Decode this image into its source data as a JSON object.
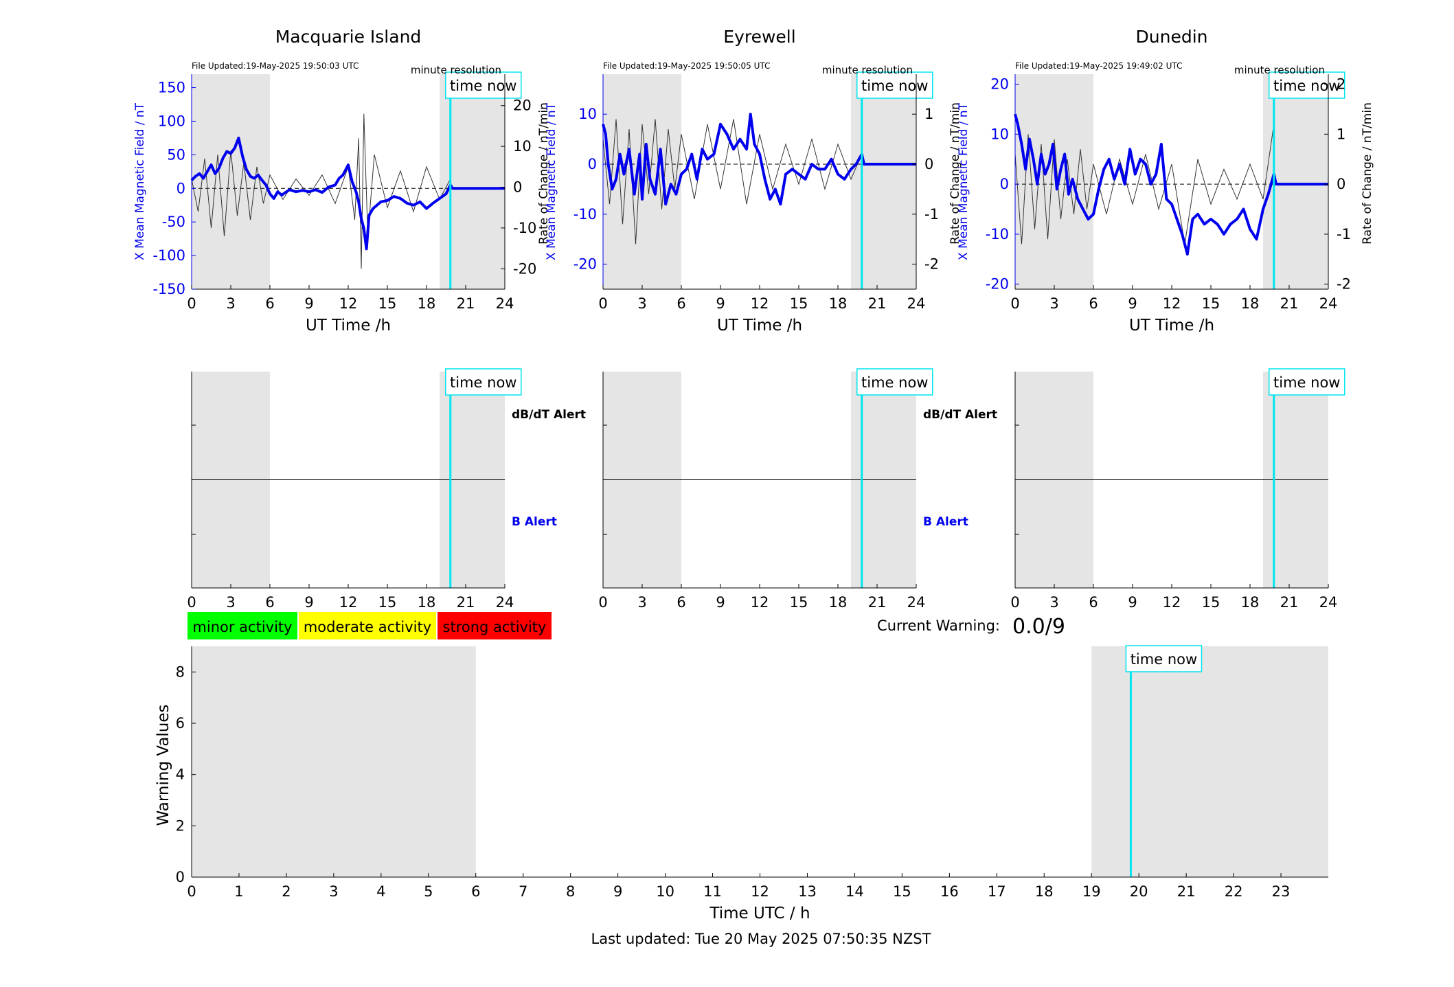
{
  "colors": {
    "blue": "#0000ee",
    "cyan": "#00e5ee",
    "shade": "#e5e5e5",
    "rate": "#333333",
    "minor": "#00ff00",
    "moderate": "#ffff00",
    "strong": "#ff0000"
  },
  "common": {
    "time_now_label": "time now",
    "minute_resolution": "minute resolution",
    "ut_xlabel": "UT Time /h",
    "left_ylabel": "X Mean Magnetic Field / nT",
    "right_ylabel": "Rate of Change / nT/min",
    "dbdt_alert": "dB/dT Alert",
    "b_alert": "B Alert",
    "x_ticks": [
      0,
      3,
      6,
      9,
      12,
      15,
      18,
      21,
      24
    ]
  },
  "legend": {
    "minor": "minor activity",
    "moderate": "moderate activity",
    "strong": "strong activity"
  },
  "current_warning": {
    "label": "Current Warning:",
    "value": "0.0/9"
  },
  "footer": "Last updated: Tue 20 May 2025 07:50:35 NZST",
  "chart_data": [
    {
      "type": "line",
      "title": "Macquarie Island",
      "file_updated": "File Updated:19-May-2025 19:50:03 UTC",
      "xlabel": "UT Time /h",
      "ylabel": "X Mean Magnetic Field / nT",
      "ylabel_right": "Rate of Change / nT/min",
      "xlim": [
        0,
        24
      ],
      "ylim": [
        -150,
        170
      ],
      "y_ticks": [
        -150,
        -100,
        -50,
        0,
        50,
        100,
        150
      ],
      "ylim_right": [
        -25,
        27.7
      ],
      "y_ticks_right": [
        -20,
        -10,
        0,
        10,
        20
      ],
      "shaded_ranges": [
        [
          0,
          6
        ],
        [
          19,
          24
        ]
      ],
      "time_now": 19.83,
      "series": [
        {
          "name": "X Mean Magnetic Field",
          "x": [
            0,
            0.3,
            0.6,
            0.9,
            1.2,
            1.5,
            1.8,
            2.1,
            2.4,
            2.7,
            3.0,
            3.3,
            3.6,
            3.9,
            4.2,
            4.5,
            4.8,
            5.1,
            5.4,
            5.7,
            6.0,
            6.3,
            6.6,
            6.9,
            7.5,
            8.0,
            8.5,
            9.0,
            9.5,
            10.0,
            10.5,
            11.0,
            11.3,
            11.6,
            12.0,
            12.3,
            12.6,
            12.8,
            13.0,
            13.2,
            13.4,
            13.6,
            13.9,
            14.2,
            14.5,
            15.0,
            15.5,
            16.0,
            16.5,
            17.0,
            17.5,
            18.0,
            18.5,
            19.0,
            19.5,
            19.83,
            20,
            22,
            24
          ],
          "y": [
            12,
            18,
            22,
            15,
            25,
            35,
            22,
            30,
            45,
            55,
            52,
            60,
            75,
            48,
            28,
            18,
            15,
            20,
            12,
            5,
            -8,
            -15,
            -5,
            -10,
            -2,
            -5,
            -3,
            -5,
            -2,
            -6,
            2,
            5,
            15,
            20,
            35,
            10,
            -5,
            -20,
            -45,
            -60,
            -90,
            -40,
            -30,
            -25,
            -20,
            -18,
            -12,
            -15,
            -22,
            -25,
            -20,
            -30,
            -22,
            -15,
            -8,
            5,
            0,
            0,
            0
          ]
        },
        {
          "name": "Rate of Change",
          "x": [
            0,
            0.5,
            1.0,
            1.5,
            2.0,
            2.5,
            3.0,
            3.5,
            4.0,
            4.5,
            5.0,
            5.5,
            6.0,
            7.0,
            8.0,
            9.0,
            10.0,
            11.0,
            12.0,
            12.5,
            12.8,
            13.0,
            13.2,
            13.5,
            14.0,
            15.0,
            16.0,
            17.0,
            18.0,
            19.0,
            19.83
          ],
          "y": [
            2,
            -6,
            7,
            -10,
            8,
            -12,
            9,
            -7,
            6,
            -8,
            5,
            -4,
            3,
            -3,
            2,
            -2,
            3,
            -4,
            5,
            -8,
            12,
            -20,
            18,
            -12,
            8,
            -5,
            4,
            -6,
            5,
            -3,
            2
          ]
        }
      ]
    },
    {
      "type": "line",
      "title": "Eyrewell",
      "file_updated": "File Updated:19-May-2025 19:50:05 UTC",
      "xlabel": "UT Time /h",
      "ylabel": "X Mean Magnetic Field / nT",
      "ylabel_right": "Rate of Change / nT/min",
      "xlim": [
        0,
        24
      ],
      "ylim": [
        -25,
        18
      ],
      "y_ticks": [
        -20,
        -10,
        0,
        10
      ],
      "ylim_right": [
        -2.5,
        1.8
      ],
      "y_ticks_right": [
        -2,
        -1,
        0,
        1
      ],
      "shaded_ranges": [
        [
          0,
          6
        ],
        [
          19,
          24
        ]
      ],
      "time_now": 19.83,
      "series": [
        {
          "name": "X Mean Magnetic Field",
          "x": [
            0,
            0.2,
            0.4,
            0.7,
            1.0,
            1.3,
            1.6,
            2.0,
            2.4,
            2.8,
            3.0,
            3.3,
            3.6,
            4.0,
            4.4,
            4.8,
            5.2,
            5.6,
            6.0,
            6.4,
            6.8,
            7.2,
            7.6,
            8.0,
            8.5,
            9.0,
            9.5,
            10.0,
            10.5,
            11.0,
            11.3,
            11.6,
            12.0,
            12.4,
            12.8,
            13.2,
            13.6,
            14.0,
            14.5,
            15.0,
            15.5,
            16.0,
            16.5,
            17.0,
            17.5,
            18.0,
            18.5,
            19.0,
            19.4,
            19.83,
            20,
            22,
            24
          ],
          "y": [
            8,
            6,
            0,
            -5,
            -3,
            2,
            -2,
            3,
            -6,
            2,
            -7,
            4,
            -3,
            -6,
            3,
            -8,
            -4,
            -6,
            -2,
            -1,
            2,
            -3,
            3,
            1,
            2,
            8,
            6,
            3,
            5,
            3,
            10,
            4,
            2,
            -3,
            -7,
            -5,
            -8,
            -2,
            -1,
            -2,
            -3,
            0,
            -1,
            -1,
            1,
            -2,
            -3,
            -1,
            0,
            2,
            0,
            0,
            0
          ]
        },
        {
          "name": "Rate of Change",
          "x": [
            0,
            0.5,
            1.0,
            1.5,
            2.0,
            2.5,
            3.0,
            3.5,
            4.0,
            4.5,
            5.0,
            5.5,
            6.0,
            7.0,
            8.0,
            9.0,
            10.0,
            11.0,
            12.0,
            13.0,
            14.0,
            15.0,
            16.0,
            17.0,
            18.0,
            19.0,
            19.83
          ],
          "y": [
            0.5,
            -0.8,
            0.9,
            -1.2,
            0.7,
            -1.6,
            0.8,
            -0.6,
            0.9,
            -0.9,
            0.7,
            -0.5,
            0.6,
            -0.7,
            0.8,
            -0.5,
            0.9,
            -0.8,
            0.6,
            -0.5,
            0.4,
            -0.4,
            0.5,
            -0.5,
            0.4,
            -0.3,
            0.2
          ]
        }
      ]
    },
    {
      "type": "line",
      "title": "Dunedin",
      "file_updated": "File Updated:19-May-2025 19:49:02 UTC",
      "xlabel": "UT Time /h",
      "ylabel": "X Mean Magnetic Field / nT",
      "ylabel_right": "Rate of Change / nT/min",
      "xlim": [
        0,
        24
      ],
      "ylim": [
        -21,
        22
      ],
      "y_ticks": [
        -20,
        -10,
        0,
        10,
        20
      ],
      "ylim_right": [
        -2.1,
        2.2
      ],
      "y_ticks_right": [
        -2,
        -1,
        0,
        1,
        2
      ],
      "shaded_ranges": [
        [
          0,
          6
        ],
        [
          19,
          24
        ]
      ],
      "time_now": 19.83,
      "series": [
        {
          "name": "X Mean Magnetic Field",
          "x": [
            0,
            0.2,
            0.5,
            0.8,
            1.1,
            1.4,
            1.7,
            2.0,
            2.3,
            2.6,
            2.9,
            3.2,
            3.5,
            3.8,
            4.1,
            4.4,
            4.8,
            5.2,
            5.6,
            6.0,
            6.4,
            6.8,
            7.2,
            7.6,
            8.0,
            8.4,
            8.8,
            9.2,
            9.6,
            10.0,
            10.4,
            10.8,
            11.2,
            11.6,
            12.0,
            12.4,
            12.8,
            13.2,
            13.6,
            14.0,
            14.5,
            15.0,
            15.5,
            16.0,
            16.5,
            17.0,
            17.5,
            18.0,
            18.5,
            19.0,
            19.4,
            19.83,
            20,
            22,
            24
          ],
          "y": [
            14,
            12,
            8,
            3,
            9,
            5,
            0,
            6,
            2,
            4,
            8,
            -1,
            3,
            6,
            -2,
            1,
            -3,
            -5,
            -7,
            -6,
            -1,
            3,
            5,
            1,
            4,
            0,
            7,
            2,
            5,
            4,
            0,
            2,
            8,
            -3,
            -4,
            -7,
            -10,
            -14,
            -7,
            -6,
            -8,
            -7,
            -8,
            -10,
            -8,
            -7,
            -5,
            -9,
            -11,
            -5,
            -2,
            2,
            0,
            0,
            0
          ]
        },
        {
          "name": "Rate of Change",
          "x": [
            0,
            0.5,
            1.0,
            1.5,
            2.0,
            2.5,
            3.0,
            3.5,
            4.0,
            4.5,
            5.0,
            5.5,
            6.0,
            7.0,
            8.0,
            9.0,
            10.0,
            11.0,
            12.0,
            13.0,
            14.0,
            15.0,
            16.0,
            17.0,
            18.0,
            19.0,
            19.83
          ],
          "y": [
            0.6,
            -1.2,
            1.0,
            -0.9,
            0.8,
            -1.1,
            0.9,
            -0.7,
            0.5,
            -0.6,
            0.7,
            -0.5,
            0.4,
            -0.6,
            0.5,
            -0.4,
            0.6,
            -0.5,
            0.4,
            -1.2,
            0.5,
            -0.4,
            0.3,
            -0.3,
            0.4,
            -0.3,
            1.2
          ]
        }
      ]
    },
    {
      "type": "line",
      "alert_panel": true,
      "xlim": [
        0,
        24
      ],
      "x_ticks": [
        0,
        3,
        6,
        9,
        12,
        15,
        18,
        21,
        24
      ],
      "shaded_ranges": [
        [
          0,
          6
        ],
        [
          19,
          24
        ]
      ],
      "time_now": 19.83
    },
    {
      "type": "line",
      "alert_panel": true,
      "xlim": [
        0,
        24
      ],
      "x_ticks": [
        0,
        3,
        6,
        9,
        12,
        15,
        18,
        21,
        24
      ],
      "shaded_ranges": [
        [
          0,
          6
        ],
        [
          19,
          24
        ]
      ],
      "time_now": 19.83
    },
    {
      "type": "line",
      "alert_panel": true,
      "xlim": [
        0,
        24
      ],
      "x_ticks": [
        0,
        3,
        6,
        9,
        12,
        15,
        18,
        21,
        24
      ],
      "shaded_ranges": [
        [
          0,
          6
        ],
        [
          19,
          24
        ]
      ],
      "time_now": 19.83
    },
    {
      "type": "line",
      "title": "",
      "xlabel": "Time UTC / h",
      "ylabel": "Warning Values",
      "xlim": [
        0,
        24
      ],
      "ylim": [
        0,
        9
      ],
      "x_ticks": [
        0,
        1,
        2,
        3,
        4,
        5,
        6,
        7,
        8,
        9,
        10,
        11,
        12,
        13,
        14,
        15,
        16,
        17,
        18,
        19,
        20,
        21,
        22,
        23
      ],
      "y_ticks": [
        0,
        2,
        4,
        6,
        8
      ],
      "shaded_ranges": [
        [
          0,
          6
        ],
        [
          19,
          24
        ]
      ],
      "time_now": 19.83,
      "series": []
    }
  ]
}
